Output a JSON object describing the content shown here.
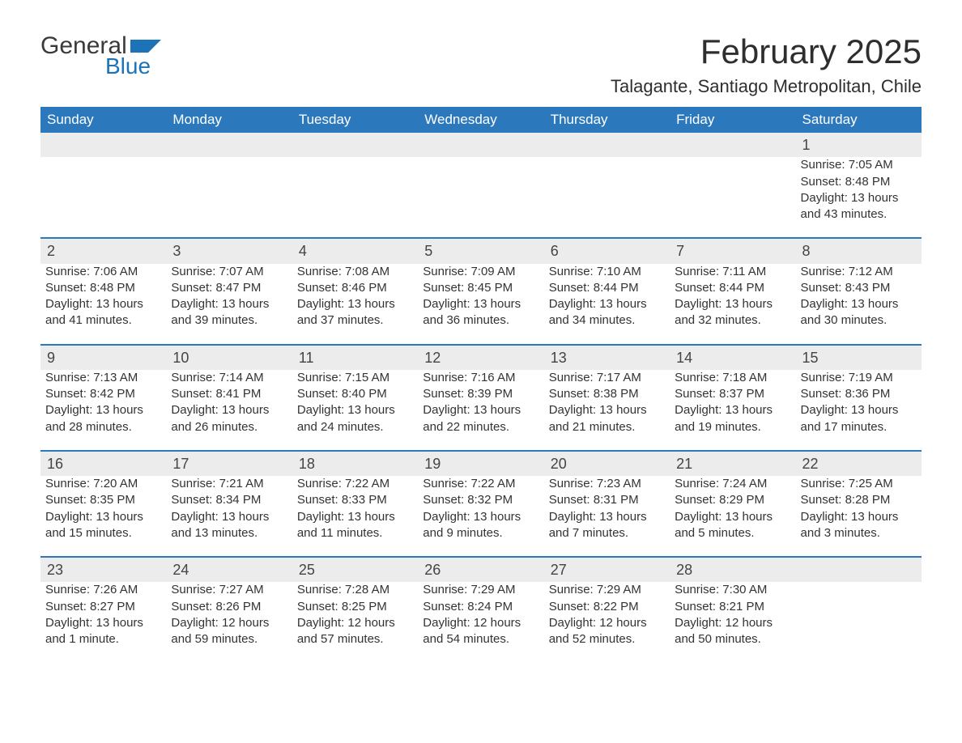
{
  "logo": {
    "text_general": "General",
    "text_blue": "Blue",
    "flag_color": "#1c73b8"
  },
  "title": "February 2025",
  "location": "Talagante, Santiago Metropolitan, Chile",
  "colors": {
    "header_bg": "#2c78bd",
    "header_text": "#ffffff",
    "daynum_bg": "#ececec",
    "body_text": "#333333",
    "separator": "#2c78bd"
  },
  "fonts": {
    "title_size_pt": 42,
    "location_size_pt": 22,
    "header_size_pt": 17,
    "cell_size_pt": 15
  },
  "weekdays": [
    "Sunday",
    "Monday",
    "Tuesday",
    "Wednesday",
    "Thursday",
    "Friday",
    "Saturday"
  ],
  "weeks": [
    [
      null,
      null,
      null,
      null,
      null,
      null,
      {
        "n": "1",
        "sr": "Sunrise: 7:05 AM",
        "ss": "Sunset: 8:48 PM",
        "dl": "Daylight: 13 hours and 43 minutes."
      }
    ],
    [
      {
        "n": "2",
        "sr": "Sunrise: 7:06 AM",
        "ss": "Sunset: 8:48 PM",
        "dl": "Daylight: 13 hours and 41 minutes."
      },
      {
        "n": "3",
        "sr": "Sunrise: 7:07 AM",
        "ss": "Sunset: 8:47 PM",
        "dl": "Daylight: 13 hours and 39 minutes."
      },
      {
        "n": "4",
        "sr": "Sunrise: 7:08 AM",
        "ss": "Sunset: 8:46 PM",
        "dl": "Daylight: 13 hours and 37 minutes."
      },
      {
        "n": "5",
        "sr": "Sunrise: 7:09 AM",
        "ss": "Sunset: 8:45 PM",
        "dl": "Daylight: 13 hours and 36 minutes."
      },
      {
        "n": "6",
        "sr": "Sunrise: 7:10 AM",
        "ss": "Sunset: 8:44 PM",
        "dl": "Daylight: 13 hours and 34 minutes."
      },
      {
        "n": "7",
        "sr": "Sunrise: 7:11 AM",
        "ss": "Sunset: 8:44 PM",
        "dl": "Daylight: 13 hours and 32 minutes."
      },
      {
        "n": "8",
        "sr": "Sunrise: 7:12 AM",
        "ss": "Sunset: 8:43 PM",
        "dl": "Daylight: 13 hours and 30 minutes."
      }
    ],
    [
      {
        "n": "9",
        "sr": "Sunrise: 7:13 AM",
        "ss": "Sunset: 8:42 PM",
        "dl": "Daylight: 13 hours and 28 minutes."
      },
      {
        "n": "10",
        "sr": "Sunrise: 7:14 AM",
        "ss": "Sunset: 8:41 PM",
        "dl": "Daylight: 13 hours and 26 minutes."
      },
      {
        "n": "11",
        "sr": "Sunrise: 7:15 AM",
        "ss": "Sunset: 8:40 PM",
        "dl": "Daylight: 13 hours and 24 minutes."
      },
      {
        "n": "12",
        "sr": "Sunrise: 7:16 AM",
        "ss": "Sunset: 8:39 PM",
        "dl": "Daylight: 13 hours and 22 minutes."
      },
      {
        "n": "13",
        "sr": "Sunrise: 7:17 AM",
        "ss": "Sunset: 8:38 PM",
        "dl": "Daylight: 13 hours and 21 minutes."
      },
      {
        "n": "14",
        "sr": "Sunrise: 7:18 AM",
        "ss": "Sunset: 8:37 PM",
        "dl": "Daylight: 13 hours and 19 minutes."
      },
      {
        "n": "15",
        "sr": "Sunrise: 7:19 AM",
        "ss": "Sunset: 8:36 PM",
        "dl": "Daylight: 13 hours and 17 minutes."
      }
    ],
    [
      {
        "n": "16",
        "sr": "Sunrise: 7:20 AM",
        "ss": "Sunset: 8:35 PM",
        "dl": "Daylight: 13 hours and 15 minutes."
      },
      {
        "n": "17",
        "sr": "Sunrise: 7:21 AM",
        "ss": "Sunset: 8:34 PM",
        "dl": "Daylight: 13 hours and 13 minutes."
      },
      {
        "n": "18",
        "sr": "Sunrise: 7:22 AM",
        "ss": "Sunset: 8:33 PM",
        "dl": "Daylight: 13 hours and 11 minutes."
      },
      {
        "n": "19",
        "sr": "Sunrise: 7:22 AM",
        "ss": "Sunset: 8:32 PM",
        "dl": "Daylight: 13 hours and 9 minutes."
      },
      {
        "n": "20",
        "sr": "Sunrise: 7:23 AM",
        "ss": "Sunset: 8:31 PM",
        "dl": "Daylight: 13 hours and 7 minutes."
      },
      {
        "n": "21",
        "sr": "Sunrise: 7:24 AM",
        "ss": "Sunset: 8:29 PM",
        "dl": "Daylight: 13 hours and 5 minutes."
      },
      {
        "n": "22",
        "sr": "Sunrise: 7:25 AM",
        "ss": "Sunset: 8:28 PM",
        "dl": "Daylight: 13 hours and 3 minutes."
      }
    ],
    [
      {
        "n": "23",
        "sr": "Sunrise: 7:26 AM",
        "ss": "Sunset: 8:27 PM",
        "dl": "Daylight: 13 hours and 1 minute."
      },
      {
        "n": "24",
        "sr": "Sunrise: 7:27 AM",
        "ss": "Sunset: 8:26 PM",
        "dl": "Daylight: 12 hours and 59 minutes."
      },
      {
        "n": "25",
        "sr": "Sunrise: 7:28 AM",
        "ss": "Sunset: 8:25 PM",
        "dl": "Daylight: 12 hours and 57 minutes."
      },
      {
        "n": "26",
        "sr": "Sunrise: 7:29 AM",
        "ss": "Sunset: 8:24 PM",
        "dl": "Daylight: 12 hours and 54 minutes."
      },
      {
        "n": "27",
        "sr": "Sunrise: 7:29 AM",
        "ss": "Sunset: 8:22 PM",
        "dl": "Daylight: 12 hours and 52 minutes."
      },
      {
        "n": "28",
        "sr": "Sunrise: 7:30 AM",
        "ss": "Sunset: 8:21 PM",
        "dl": "Daylight: 12 hours and 50 minutes."
      },
      null
    ]
  ]
}
